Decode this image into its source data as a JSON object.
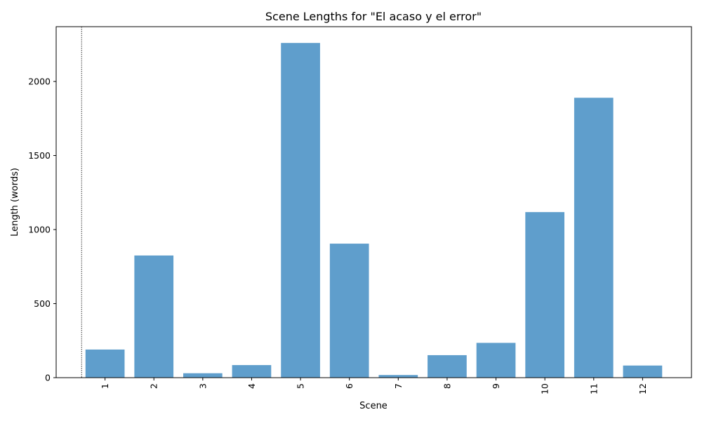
{
  "chart_data": {
    "type": "bar",
    "title": "Scene Lengths for \"El acaso y el error\"",
    "xlabel": "Scene",
    "ylabel": "Length (words)",
    "categories": [
      "1",
      "2",
      "3",
      "4",
      "5",
      "6",
      "7",
      "8",
      "9",
      "10",
      "11",
      "12"
    ],
    "values": [
      190,
      825,
      30,
      85,
      2260,
      905,
      18,
      152,
      235,
      1118,
      1890,
      82
    ],
    "ylim": [
      0,
      2370
    ],
    "yticks": [
      0,
      500,
      1000,
      1500,
      2000
    ],
    "ytick_labels": [
      "0",
      "500",
      "1000",
      "1500",
      "2000"
    ],
    "xtick_rotation_deg": 90,
    "grid": false,
    "legend": "none",
    "bar_color": "#5f9ecc",
    "reference_line": {
      "style": "dotted",
      "color": "#000000",
      "position": "left of first bar"
    }
  }
}
